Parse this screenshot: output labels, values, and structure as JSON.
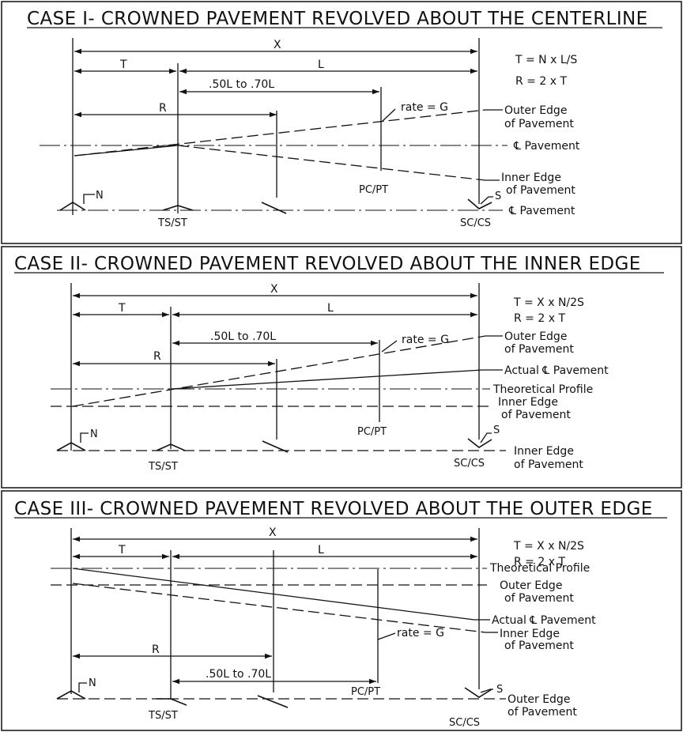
{
  "case1": {
    "title": "CASE I- CROWNED PAVEMENT REVOLVED ABOUT THE CENTERLINE",
    "dim_x": "X",
    "dim_t": "T",
    "dim_l": "L",
    "dim_range": ".50L to .70L",
    "dim_r": "R",
    "formula_t": "T = N x L/S",
    "formula_r": "R = 2 x T",
    "rate": "rate = G",
    "label_outer_1": "Outer Edge",
    "label_outer_2": "of Pavement",
    "label_cl": "℄ Pavement",
    "label_inner_1": "Inner Edge",
    "label_inner_2": "of Pavement",
    "label_cl_bottom": "℄ Pavement",
    "pc_pt": "PC/PT",
    "ts_st": "TS/ST",
    "sc_cs": "SC/CS",
    "n": "N",
    "s": "S"
  },
  "case2": {
    "title": "CASE II- CROWNED PAVEMENT REVOLVED ABOUT THE INNER EDGE",
    "dim_x": "X",
    "dim_t": "T",
    "dim_l": "L",
    "dim_range": ".50L to .70L",
    "dim_r": "R",
    "formula_t": "T = X x N/2S",
    "formula_r": "R = 2 x T",
    "rate": "rate = G",
    "label_outer_1": "Outer Edge",
    "label_outer_2": "of Pavement",
    "label_actual": "Actual ℄ Pavement",
    "label_theoretical": "Theoretical Profile",
    "label_inner_1": "Inner Edge",
    "label_inner_2": "of Pavement",
    "label_inner_bottom_1": "Inner Edge",
    "label_inner_bottom_2": "of Pavement",
    "pc_pt": "PC/PT",
    "ts_st": "TS/ST",
    "sc_cs": "SC/CS",
    "n": "N",
    "s": "S"
  },
  "case3": {
    "title": "CASE III- CROWNED PAVEMENT REVOLVED ABOUT THE OUTER EDGE",
    "dim_x": "X",
    "dim_t": "T",
    "dim_l": "L",
    "dim_range": ".50L to .70L",
    "dim_r": "R",
    "formula_t": "T = X x N/2S",
    "formula_r": "R = 2 x T",
    "rate": "rate = G",
    "label_theoretical": "Theoretical Profile",
    "label_outer_1": "Outer Edge",
    "label_outer_2": "of Pavement",
    "label_actual": "Actual ℄ Pavement",
    "label_inner_1": "Inner Edge",
    "label_inner_2": "of Pavement",
    "label_outer_bottom_1": "Outer Edge",
    "label_outer_bottom_2": "of Pavement",
    "pc_pt": "PC/PT",
    "ts_st": "TS/ST",
    "sc_cs": "SC/CS",
    "n": "N",
    "s": "S"
  }
}
